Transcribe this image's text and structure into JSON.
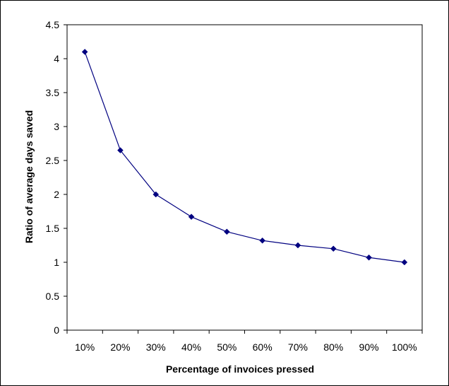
{
  "chart_data": {
    "type": "line",
    "title": "",
    "xlabel": "Percentage of invoices pressed",
    "ylabel": "Ratio of average days saved",
    "categories": [
      "10%",
      "20%",
      "30%",
      "40%",
      "50%",
      "60%",
      "70%",
      "80%",
      "90%",
      "100%"
    ],
    "series": [
      {
        "values": [
          4.1,
          2.65,
          2.0,
          1.67,
          1.45,
          1.32,
          1.25,
          1.2,
          1.07,
          1.0
        ],
        "color": "#000080",
        "marker": "diamond"
      }
    ],
    "ylim": [
      0,
      4.5
    ],
    "yticks": [
      "0",
      "0.5",
      "1",
      "1.5",
      "2",
      "2.5",
      "3",
      "3.5",
      "4",
      "4.5"
    ],
    "grid": false,
    "legend": "none"
  }
}
